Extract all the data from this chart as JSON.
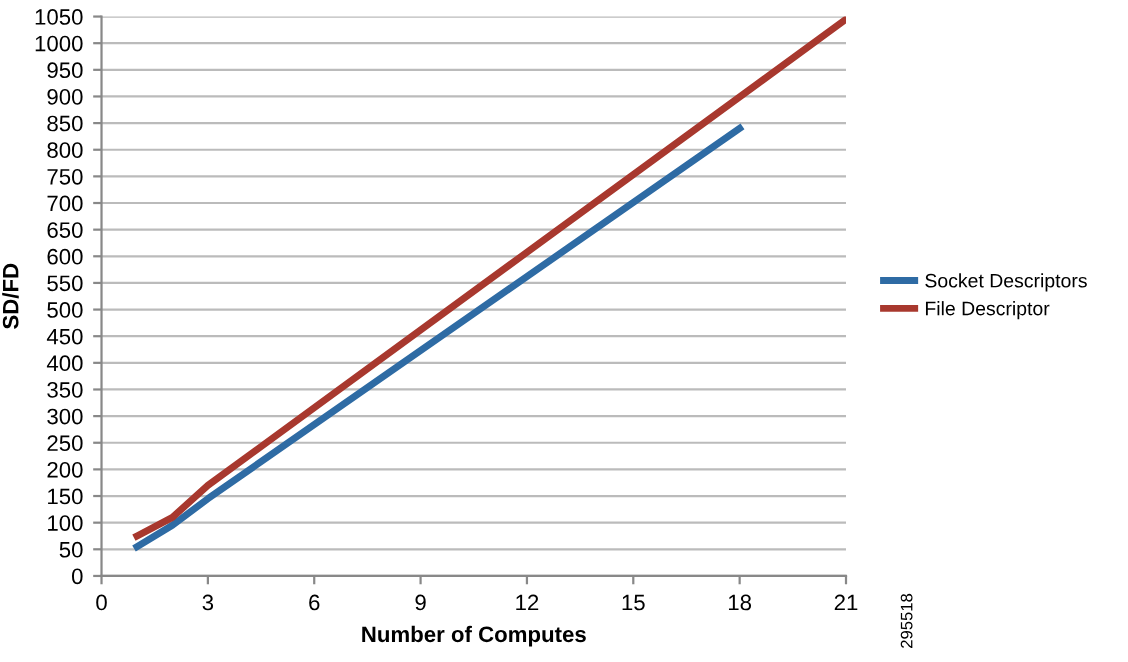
{
  "chart_data": {
    "type": "line",
    "xlabel": "Number of Computes",
    "ylabel": "SD/FD",
    "xlim": [
      0,
      21
    ],
    "xticks": [
      0,
      3,
      6,
      9,
      12,
      15,
      18,
      21
    ],
    "ylim": [
      0,
      1050
    ],
    "yticks": [
      0,
      50,
      100,
      150,
      200,
      250,
      300,
      350,
      400,
      450,
      500,
      550,
      600,
      650,
      700,
      750,
      800,
      850,
      900,
      950,
      1000,
      1050
    ],
    "grid": "y",
    "legend": "right",
    "marker": "none",
    "line_style": "solid",
    "annotations": [
      "295518"
    ],
    "series": [
      {
        "name": "Socket Descriptors",
        "color": "#2e6ba4",
        "x": [
          1,
          2,
          3,
          18
        ],
        "values": [
          55,
          95,
          145,
          840
        ]
      },
      {
        "name": "File Descriptor",
        "color": "#a8382e",
        "x": [
          1,
          2,
          3,
          21
        ],
        "values": [
          75,
          110,
          170,
          1045
        ]
      }
    ]
  }
}
